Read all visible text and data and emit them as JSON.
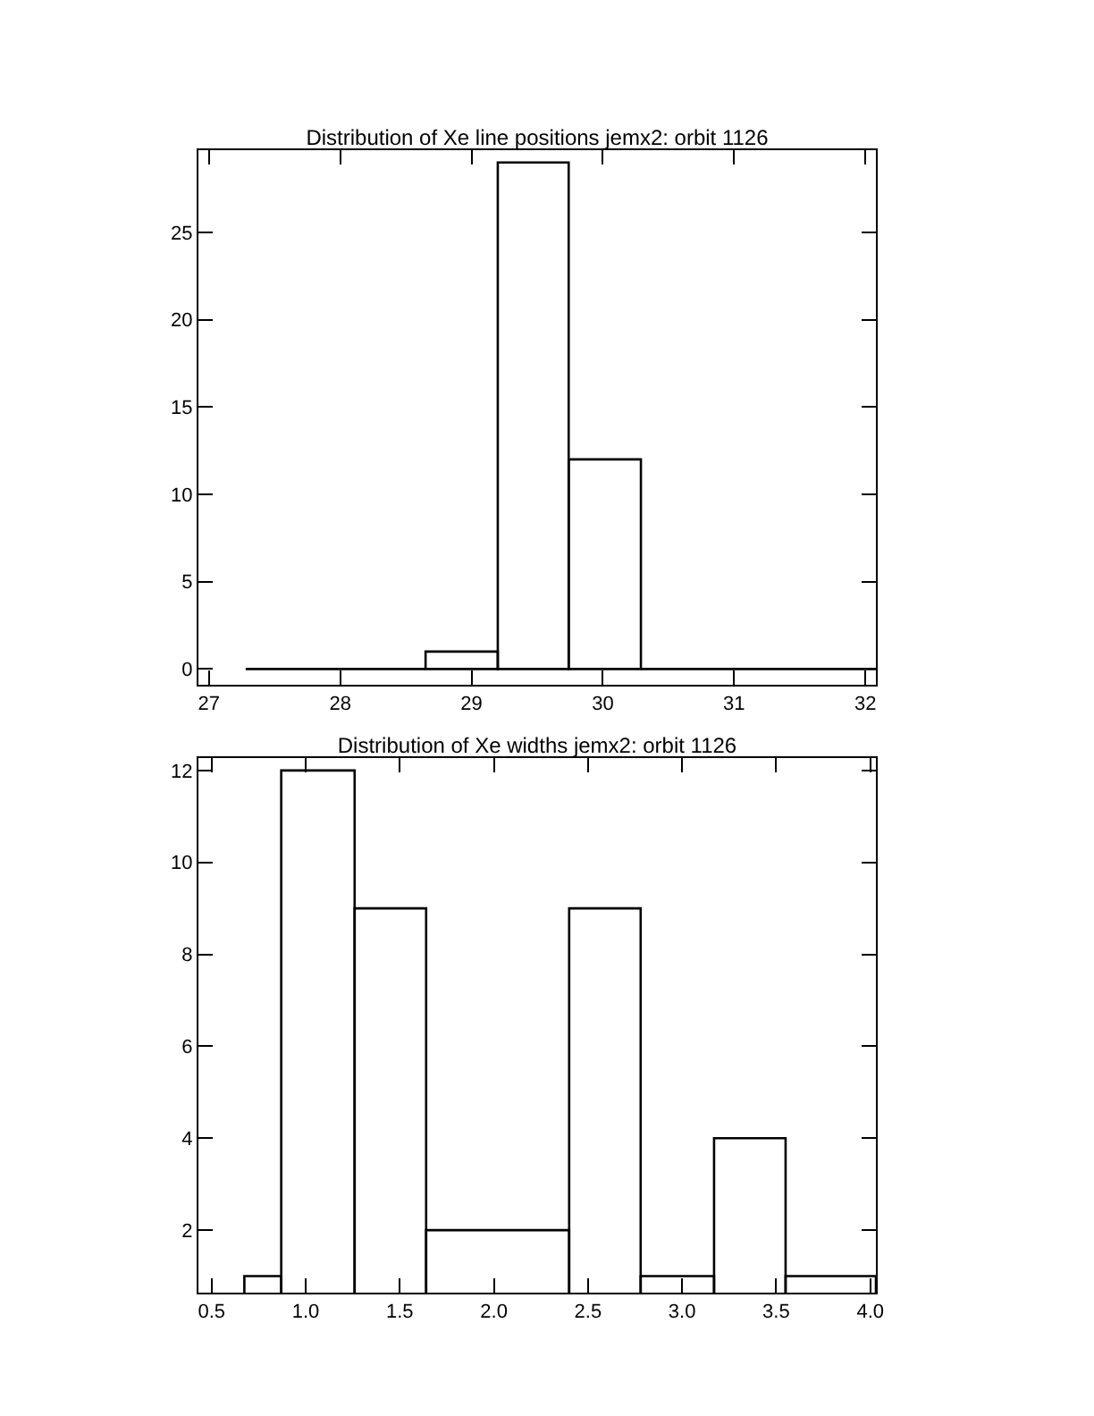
{
  "chart_data": [
    {
      "type": "histogram",
      "title": "Distribution of Xe line positions jemx2: orbit 1126",
      "color": "#000000",
      "bins": [
        27.28,
        28.65,
        29.2,
        29.74,
        30.29,
        32.08
      ],
      "values": [
        0,
        1,
        29,
        12,
        0
      ],
      "xlim": [
        26.92,
        32.08
      ],
      "xticks": [
        27,
        28,
        29,
        30,
        31,
        32
      ],
      "ylim": [
        -0.9,
        29.7
      ],
      "yticks": [
        0,
        5,
        10,
        15,
        20,
        25
      ]
    },
    {
      "type": "histogram",
      "title": "Distribution of Xe widths jemx2: orbit 1126",
      "color": "#000000",
      "bins": [
        0.674,
        0.87,
        1.26,
        1.64,
        2.4,
        2.78,
        3.17,
        3.55,
        4.03
      ],
      "values": [
        1,
        12,
        9,
        2,
        9,
        1,
        4,
        1
      ],
      "xlim": [
        0.43,
        4.03
      ],
      "xticks": [
        {
          "value": 0.5,
          "label": "0.5"
        },
        {
          "value": 1,
          "label": "1.0"
        },
        {
          "value": 1.5,
          "label": "1.5"
        },
        {
          "value": 2,
          "label": "2.0"
        },
        {
          "value": 2.5,
          "label": "2.5"
        },
        {
          "value": 3,
          "label": "3.0"
        },
        {
          "value": 3.5,
          "label": "3.5"
        },
        {
          "value": 4,
          "label": "4.0"
        }
      ],
      "ylim": [
        0.64,
        12.27
      ],
      "yticks": [
        2,
        4,
        6,
        8,
        10,
        12
      ]
    }
  ]
}
